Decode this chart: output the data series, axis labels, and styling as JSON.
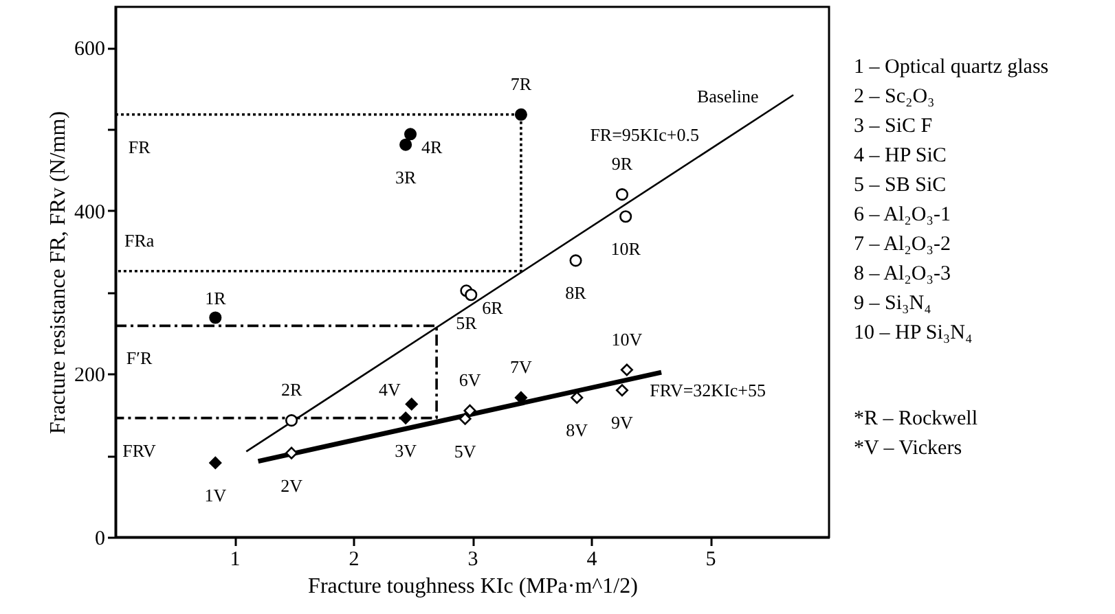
{
  "chart_data": {
    "type": "scatter",
    "xlabel": "Fracture toughness KIc (MPa·m^1/2)",
    "ylabel": "Fracture resistance FR, FRv (N/mm)",
    "xlim": [
      0,
      6
    ],
    "xticks": [
      1,
      2,
      3,
      4,
      5
    ],
    "ylim": [
      0,
      650
    ],
    "yticks": [
      0,
      {
        "value": 100,
        "label": null
      },
      200,
      {
        "value": 300,
        "label": null
      },
      400,
      {
        "value": 500,
        "label": null
      },
      600
    ],
    "grid": false,
    "series": [
      {
        "type": "line",
        "color": "#000000",
        "line_style": "solid",
        "marker": "none",
        "x": [
          1.1,
          5.7
        ],
        "values": [
          105,
          542
        ]
      },
      {
        "type": "line",
        "color": "#000000",
        "line_style": "solid",
        "marker": "none",
        "x": [
          1.2,
          4.59
        ],
        "values": [
          93,
          202
        ]
      },
      {
        "type": "line",
        "color": "#000000",
        "line_style": "dotted",
        "marker": "none",
        "x": [
          0,
          3.41,
          3.41,
          0
        ],
        "values": [
          518,
          518,
          326,
          326
        ]
      },
      {
        "type": "line",
        "color": "#000000",
        "line_style": "dashed",
        "marker": "none",
        "x": [
          0,
          2.7,
          2.7,
          0
        ],
        "values": [
          259,
          259,
          146,
          146
        ]
      },
      {
        "color": "#000000",
        "marker": "circle",
        "x": [
          0.84,
          2.44,
          2.48,
          3.41
        ],
        "values": [
          269,
          481,
          494,
          518
        ]
      },
      {
        "color": "#ffffff",
        "marker": "circle",
        "x": [
          1.48,
          2.95,
          2.99,
          3.87,
          4.26,
          4.29
        ],
        "values": [
          143,
          302,
          297,
          339,
          420,
          393
        ]
      },
      {
        "color": "#000000",
        "marker": "diamond",
        "x": [
          0.84,
          2.44,
          2.49,
          3.41
        ],
        "values": [
          91,
          146,
          163,
          171
        ]
      },
      {
        "color": "#ffffff",
        "marker": "diamond",
        "x": [
          1.48,
          2.94,
          2.98,
          3.88,
          4.26,
          4.3
        ],
        "values": [
          103,
          145,
          155,
          171,
          180,
          205
        ]
      }
    ],
    "annotations": [
      {
        "text": "1R",
        "x": 0.84,
        "y": 269
      },
      {
        "text": "3R",
        "x": 2.44,
        "y": 481
      },
      {
        "text": "4R",
        "x": 2.48,
        "y": 494
      },
      {
        "text": "7R",
        "x": 3.41,
        "y": 518
      },
      {
        "text": "2R",
        "x": 1.48,
        "y": 143
      },
      {
        "text": "5R",
        "x": 2.95,
        "y": 302
      },
      {
        "text": "6R",
        "x": 2.99,
        "y": 297
      },
      {
        "text": "8R",
        "x": 3.87,
        "y": 339
      },
      {
        "text": "9R",
        "x": 4.26,
        "y": 420
      },
      {
        "text": "10R",
        "x": 4.29,
        "y": 393
      },
      {
        "text": "1V",
        "x": 0.84,
        "y": 91
      },
      {
        "text": "2V",
        "x": 1.48,
        "y": 103
      },
      {
        "text": "3V",
        "x": 2.44,
        "y": 146
      },
      {
        "text": "4V",
        "x": 2.49,
        "y": 163
      },
      {
        "text": "5V",
        "x": 2.94,
        "y": 145
      },
      {
        "text": "6V",
        "x": 2.98,
        "y": 155
      },
      {
        "text": "7V",
        "x": 3.41,
        "y": 171
      },
      {
        "text": "8V",
        "x": 3.88,
        "y": 171
      },
      {
        "text": "9V",
        "x": 4.26,
        "y": 180
      },
      {
        "text": "10V",
        "x": 4.3,
        "y": 205
      },
      {
        "text": "FR",
        "x": 0.2,
        "y": 518
      },
      {
        "text": "FRa",
        "x": 0.2,
        "y": 326
      },
      {
        "text": "F′R",
        "x": 0.2,
        "y": 259
      },
      {
        "text": "FRV",
        "x": 0.2,
        "y": 146
      },
      {
        "text": "FR=95KIc+0.5",
        "x": 5.0,
        "y": 475.5
      },
      {
        "text": "FRV=32KIc+55",
        "x": 4.4,
        "y": 196
      },
      {
        "text": "Baseline",
        "x": 5.5,
        "y": 523
      },
      "1 – Optical quartz glass",
      "2 – Sc₂O₃",
      "3 – SiC F",
      "4 – HP SiC",
      "5 – SB SiC",
      "6 – Al₂O₃-1",
      "7 – Al₂O₃-2",
      "8 – Al₂O₃-3",
      "9 – Si₃N₄",
      "10 – HP Si₃N₄",
      "*R – Rockwell",
      "*V – Vickers"
    ]
  }
}
